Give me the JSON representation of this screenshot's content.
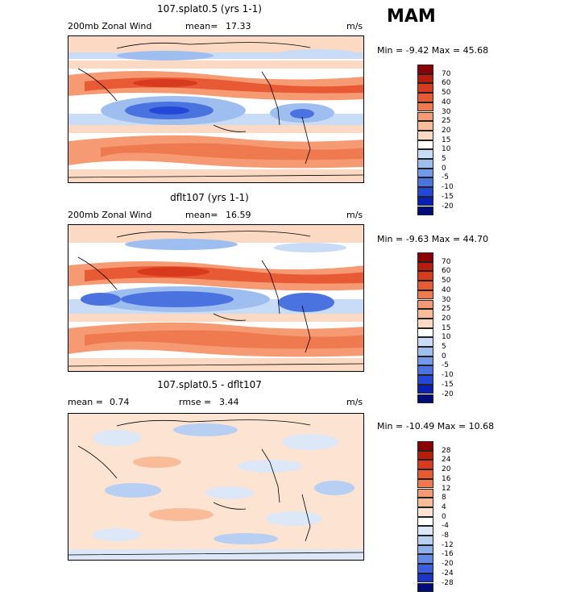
{
  "season": "MAM",
  "panels": [
    {
      "title": "107.splat0.5 (yrs 1-1)",
      "left_label": "200mb Zonal Wind",
      "stat_label": "mean=",
      "stat_value": "17.33",
      "stat2_label": "",
      "stat2_value": "",
      "units": "m/s",
      "min_label": "Min =",
      "min_value": "-9.42",
      "max_label": "Max =",
      "max_value": "45.68",
      "levels": [
        "70",
        "60",
        "50",
        "40",
        "30",
        "25",
        "20",
        "15",
        "10",
        "5",
        "0",
        "-5",
        "-10",
        "-15",
        "-20"
      ]
    },
    {
      "title": "dflt107 (yrs 1-1)",
      "left_label": "200mb Zonal Wind",
      "stat_label": "mean=",
      "stat_value": "16.59",
      "stat2_label": "",
      "stat2_value": "",
      "units": "m/s",
      "min_label": "Min =",
      "min_value": "-9.63",
      "max_label": "Max =",
      "max_value": "44.70",
      "levels": [
        "70",
        "60",
        "50",
        "40",
        "30",
        "25",
        "20",
        "15",
        "10",
        "5",
        "0",
        "-5",
        "-10",
        "-15",
        "-20"
      ]
    },
    {
      "title": "107.splat0.5 - dflt107",
      "left_label": "",
      "stat_label": "mean =",
      "stat_value": "0.74",
      "stat2_label": "rmse =",
      "stat2_value": "3.44",
      "units": "m/s",
      "min_label": "Min =",
      "min_value": "-10.49",
      "max_label": "Max =",
      "max_value": "10.68",
      "levels": [
        "28",
        "24",
        "20",
        "16",
        "12",
        "8",
        "4",
        "0",
        "-4",
        "-8",
        "-12",
        "-16",
        "-20",
        "-24",
        "-28"
      ]
    }
  ],
  "colors": {
    "scale_abs": [
      "#8b0000",
      "#b71c0c",
      "#d83a1e",
      "#e85a33",
      "#f07a4f",
      "#f59a72",
      "#f9bb98",
      "#fbd9c2",
      "#ffffff",
      "#c9dcf7",
      "#9ebef0",
      "#7299ea",
      "#4a73e0",
      "#2348d8",
      "#0a1fb5",
      "#000c7a"
    ],
    "scale_diff": [
      "#8b0000",
      "#b71c0c",
      "#d83a1e",
      "#e85a33",
      "#f07a4f",
      "#f59a72",
      "#f9bb98",
      "#fde4d2",
      "#ffffff",
      "#dce8f8",
      "#b7cff3",
      "#8eb1ee",
      "#6489e6",
      "#3b5edc",
      "#1a36c7",
      "#000c7a"
    ]
  }
}
